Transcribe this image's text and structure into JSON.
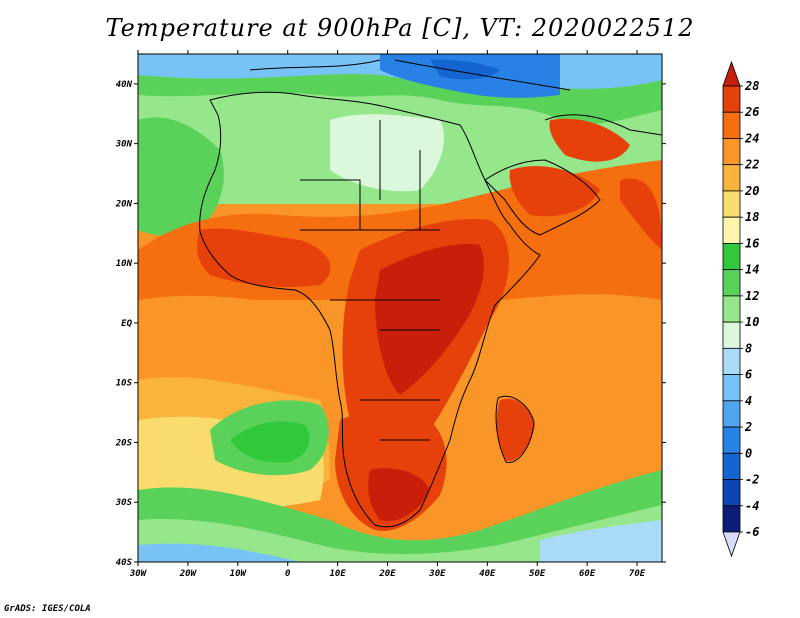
{
  "title": "Temperature at 900hPa [C], VT: 2020022512",
  "footer": "GrADS: IGES/COLA",
  "map": {
    "lat_labels": [
      "40N",
      "30N",
      "20N",
      "10N",
      "EQ",
      "10S",
      "20S",
      "30S",
      "40S"
    ],
    "lon_labels": [
      "30W",
      "20W",
      "10W",
      "0",
      "10E",
      "20E",
      "30E",
      "40E",
      "50E",
      "60E",
      "70E"
    ],
    "lat_range": [
      -40,
      45
    ],
    "lon_range": [
      -30,
      75
    ]
  },
  "colorbar": {
    "labels": [
      "28",
      "26",
      "24",
      "22",
      "20",
      "18",
      "16",
      "14",
      "12",
      "10",
      "8",
      "6",
      "4",
      "2",
      "0",
      "-2",
      "-4",
      "-6"
    ],
    "colors": {
      "c28": "#c81e0a",
      "c26": "#e6410a",
      "c24": "#f56e0f",
      "c22": "#fa9628",
      "c20": "#fab43c",
      "c18": "#fadc6e",
      "c16": "#fff5aa",
      "c14": "#32c83c",
      "c12": "#5ad25a",
      "c10": "#96e68c",
      "c8": "#dcf8dc",
      "c6": "#aadcfa",
      "c4": "#78c3f5",
      "c2": "#50a5f0",
      "c0": "#2882e6",
      "cm2": "#1464d2",
      "cm4": "#0a46b4",
      "cm6": "#0a1e78",
      "under": "#dcdcfa"
    }
  }
}
